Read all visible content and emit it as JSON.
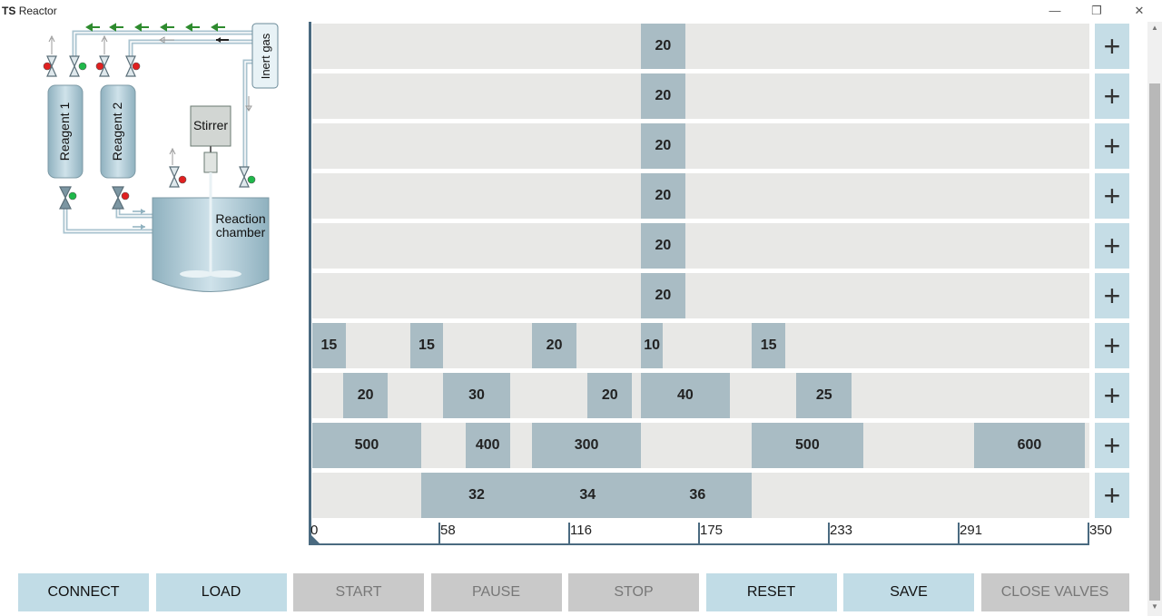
{
  "window": {
    "title_bold": "TS",
    "title_rest": "Reactor",
    "minimize": "—",
    "restore": "❐",
    "close": "✕"
  },
  "diagram": {
    "reagent1": "Reagent 1",
    "reagent2": "Reagent 2",
    "inert_gas": "Inert gas",
    "stirrer": "Stirrer",
    "chamber_line1": "Reaction",
    "chamber_line2": "chamber"
  },
  "timeline": {
    "axis_ticks": [
      "0",
      "58",
      "116",
      "175",
      "233",
      "291",
      "350"
    ],
    "plus_label": "+",
    "rows": [
      [
        {
          "start": 148,
          "length": 20,
          "label": "20"
        }
      ],
      [
        {
          "start": 148,
          "length": 20,
          "label": "20"
        }
      ],
      [
        {
          "start": 148,
          "length": 20,
          "label": "20"
        }
      ],
      [
        {
          "start": 148,
          "length": 20,
          "label": "20"
        }
      ],
      [
        {
          "start": 148,
          "length": 20,
          "label": "20"
        }
      ],
      [
        {
          "start": 148,
          "length": 20,
          "label": "20"
        }
      ],
      [
        {
          "start": 0,
          "length": 15,
          "label": "15"
        },
        {
          "start": 44,
          "length": 15,
          "label": "15"
        },
        {
          "start": 99,
          "length": 20,
          "label": "20"
        },
        {
          "start": 148,
          "length": 10,
          "label": "10"
        },
        {
          "start": 198,
          "length": 15,
          "label": "15"
        }
      ],
      [
        {
          "start": 14,
          "length": 20,
          "label": "20"
        },
        {
          "start": 59,
          "length": 30,
          "label": "30"
        },
        {
          "start": 124,
          "length": 20,
          "label": "20"
        },
        {
          "start": 148,
          "length": 40,
          "label": "40"
        },
        {
          "start": 218,
          "length": 25,
          "label": "25"
        }
      ],
      [
        {
          "start": 0,
          "length": 49,
          "label": "500"
        },
        {
          "start": 69,
          "length": 20,
          "label": "400"
        },
        {
          "start": 99,
          "length": 49,
          "label": "300"
        },
        {
          "start": 198,
          "length": 50,
          "label": "500"
        },
        {
          "start": 298,
          "length": 50,
          "label": "600"
        }
      ],
      [
        {
          "start": 49,
          "length": 50,
          "label": "32"
        },
        {
          "start": 99,
          "length": 50,
          "label": "34"
        },
        {
          "start": 149,
          "length": 49,
          "label": "36"
        }
      ]
    ]
  },
  "buttons": [
    {
      "label": "CONNECT",
      "enabled": true
    },
    {
      "label": "LOAD",
      "enabled": true
    },
    {
      "label": "START",
      "enabled": false
    },
    {
      "label": "PAUSE",
      "enabled": false
    },
    {
      "label": "STOP",
      "enabled": false
    },
    {
      "label": "RESET",
      "enabled": true
    },
    {
      "label": "SAVE",
      "enabled": true
    },
    {
      "label": "CLOSE VALVES",
      "enabled": false
    }
  ],
  "colors": {
    "segment": "#a9bcc4",
    "row_bg": "#e8e8e6",
    "button_active": "#c1dce6",
    "button_disabled": "#c9c9c9",
    "valve_open": "#1fb84a",
    "valve_closed": "#e02020"
  }
}
